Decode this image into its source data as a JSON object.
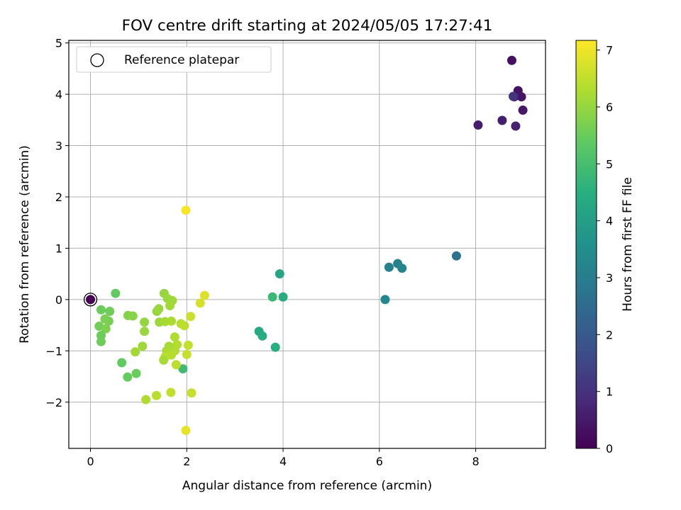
{
  "chart_data": {
    "type": "scatter",
    "title": "FOV centre drift starting at 2024/05/05 17:27:41",
    "xlabel": "Angular distance from reference (arcmin)",
    "ylabel": "Rotation from reference (arcmin)",
    "xlim": [
      -0.45,
      9.45
    ],
    "ylim": [
      -2.9,
      5.05
    ],
    "xticks": [
      0,
      2,
      4,
      6,
      8
    ],
    "yticks": [
      -2,
      -1,
      0,
      1,
      2,
      3,
      4,
      5
    ],
    "xtick_labels": [
      "0",
      "2",
      "4",
      "6",
      "8"
    ],
    "ytick_labels": [
      "−2",
      "−1",
      "0",
      "1",
      "2",
      "3",
      "4",
      "5"
    ],
    "grid": true,
    "legend": {
      "position": "top-left",
      "entries": [
        "Reference platepar"
      ]
    },
    "reference_point": {
      "x": 0,
      "y": 0
    },
    "colorbar": {
      "label": "Hours from first FF file",
      "range": [
        0,
        7.17
      ],
      "ticks": [
        0,
        1,
        2,
        3,
        4,
        5,
        6,
        7
      ],
      "tick_labels": [
        "0",
        "1",
        "2",
        "3",
        "4",
        "5",
        "6",
        "7"
      ],
      "colormap": "viridis"
    },
    "series": [
      {
        "points": [
          {
            "x": 8.75,
            "y": 4.66,
            "c": 0.3
          },
          {
            "x": 8.88,
            "y": 4.07,
            "c": 0.35
          },
          {
            "x": 8.95,
            "y": 3.95,
            "c": 0.4
          },
          {
            "x": 8.8,
            "y": 3.95,
            "c": 0.5
          },
          {
            "x": 8.78,
            "y": 3.96,
            "c": 1.1
          },
          {
            "x": 8.98,
            "y": 3.69,
            "c": 0.45
          },
          {
            "x": 8.05,
            "y": 3.4,
            "c": 0.55
          },
          {
            "x": 8.55,
            "y": 3.49,
            "c": 0.6
          },
          {
            "x": 8.83,
            "y": 3.38,
            "c": 0.65
          },
          {
            "x": 7.6,
            "y": 0.85,
            "c": 2.7
          },
          {
            "x": 6.2,
            "y": 0.63,
            "c": 3.1
          },
          {
            "x": 6.38,
            "y": 0.7,
            "c": 3.15
          },
          {
            "x": 6.47,
            "y": 0.61,
            "c": 3.2
          },
          {
            "x": 6.12,
            "y": 0.0,
            "c": 3.3
          },
          {
            "x": 3.93,
            "y": 0.5,
            "c": 4.2
          },
          {
            "x": 3.78,
            "y": 0.05,
            "c": 4.8
          },
          {
            "x": 4.0,
            "y": 0.05,
            "c": 4.4
          },
          {
            "x": 3.5,
            "y": -0.62,
            "c": 4.35
          },
          {
            "x": 3.57,
            "y": -0.71,
            "c": 4.4
          },
          {
            "x": 3.84,
            "y": -0.93,
            "c": 4.5
          },
          {
            "x": 1.92,
            "y": -1.35,
            "c": 4.9
          },
          {
            "x": 0.52,
            "y": 0.12,
            "c": 5.4
          },
          {
            "x": 0.22,
            "y": -0.2,
            "c": 5.5
          },
          {
            "x": 0.4,
            "y": -0.23,
            "c": 5.55
          },
          {
            "x": 0.18,
            "y": -0.52,
            "c": 5.6
          },
          {
            "x": 0.38,
            "y": -0.42,
            "c": 5.65
          },
          {
            "x": 0.3,
            "y": -0.38,
            "c": 5.7
          },
          {
            "x": 0.32,
            "y": -0.57,
            "c": 5.75
          },
          {
            "x": 0.22,
            "y": -0.7,
            "c": 5.5
          },
          {
            "x": 0.22,
            "y": -0.82,
            "c": 5.55
          },
          {
            "x": 0.65,
            "y": -1.23,
            "c": 5.4
          },
          {
            "x": 0.77,
            "y": -1.51,
            "c": 5.45
          },
          {
            "x": 0.95,
            "y": -1.44,
            "c": 5.5
          },
          {
            "x": 0.78,
            "y": -0.31,
            "c": 5.8
          },
          {
            "x": 0.88,
            "y": -0.32,
            "c": 5.85
          },
          {
            "x": 1.12,
            "y": -0.44,
            "c": 6.0
          },
          {
            "x": 1.12,
            "y": -0.62,
            "c": 6.05
          },
          {
            "x": 1.08,
            "y": -0.91,
            "c": 6.1
          },
          {
            "x": 0.93,
            "y": -1.02,
            "c": 6.15
          },
          {
            "x": 1.15,
            "y": -1.95,
            "c": 6.3
          },
          {
            "x": 1.37,
            "y": -1.87,
            "c": 6.4
          },
          {
            "x": 1.67,
            "y": -1.81,
            "c": 6.5
          },
          {
            "x": 2.1,
            "y": -1.82,
            "c": 6.55
          },
          {
            "x": 1.38,
            "y": -0.23,
            "c": 6.0
          },
          {
            "x": 1.42,
            "y": -0.18,
            "c": 6.05
          },
          {
            "x": 1.43,
            "y": -0.44,
            "c": 6.1
          },
          {
            "x": 1.53,
            "y": 0.12,
            "c": 6.0
          },
          {
            "x": 1.6,
            "y": 0.02,
            "c": 6.05
          },
          {
            "x": 1.7,
            "y": -0.02,
            "c": 6.1
          },
          {
            "x": 1.65,
            "y": -0.12,
            "c": 6.15
          },
          {
            "x": 1.55,
            "y": -0.43,
            "c": 6.2
          },
          {
            "x": 1.68,
            "y": -0.42,
            "c": 6.25
          },
          {
            "x": 1.88,
            "y": -0.47,
            "c": 6.4
          },
          {
            "x": 1.95,
            "y": -0.51,
            "c": 6.45
          },
          {
            "x": 1.75,
            "y": -0.73,
            "c": 6.3
          },
          {
            "x": 1.8,
            "y": -0.88,
            "c": 6.35
          },
          {
            "x": 1.63,
            "y": -0.91,
            "c": 6.2
          },
          {
            "x": 1.58,
            "y": -1.0,
            "c": 6.25
          },
          {
            "x": 1.75,
            "y": -1.0,
            "c": 6.3
          },
          {
            "x": 1.68,
            "y": -1.08,
            "c": 6.35
          },
          {
            "x": 1.55,
            "y": -1.12,
            "c": 6.4
          },
          {
            "x": 1.52,
            "y": -1.18,
            "c": 6.2
          },
          {
            "x": 1.78,
            "y": -1.27,
            "c": 6.45
          },
          {
            "x": 2.03,
            "y": -0.89,
            "c": 6.5
          },
          {
            "x": 2.0,
            "y": -1.07,
            "c": 6.55
          },
          {
            "x": 2.08,
            "y": -0.33,
            "c": 6.6
          },
          {
            "x": 2.28,
            "y": -0.07,
            "c": 6.7
          },
          {
            "x": 2.37,
            "y": 0.08,
            "c": 6.8
          },
          {
            "x": 1.98,
            "y": 1.74,
            "c": 7.1
          },
          {
            "x": 1.98,
            "y": -2.55,
            "c": 6.9
          }
        ]
      }
    ]
  }
}
